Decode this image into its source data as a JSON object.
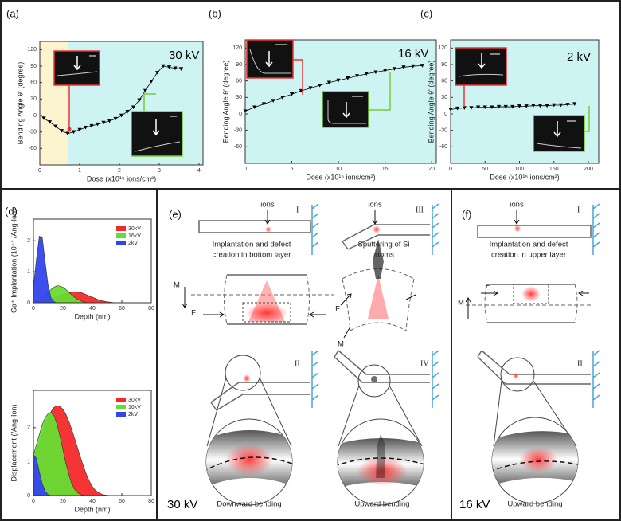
{
  "chart_data": [
    {
      "type": "line",
      "panel_label": "(a)",
      "annotation": "30 kV",
      "xlabel": "Dose (x10¹⁵ ions/cm²)",
      "ylabel": "Bending Angle θ' (degree)",
      "xlim": [
        0,
        4.1
      ],
      "ylim": [
        -90,
        135
      ],
      "xticks": [
        0,
        1,
        2,
        3,
        4
      ],
      "yticks": [
        -60,
        -30,
        0,
        30,
        60,
        90,
        120
      ],
      "background": "#cdf4f2",
      "highlight_span": [
        0,
        0.7
      ],
      "highlight_color": "#fbf4cf",
      "marker": "triangle-down",
      "x": [
        0.1,
        0.25,
        0.4,
        0.55,
        0.7,
        0.85,
        1.0,
        1.15,
        1.3,
        1.45,
        1.6,
        1.75,
        1.9,
        2.05,
        2.2,
        2.35,
        2.5,
        2.65,
        2.8,
        2.95,
        3.1,
        3.25,
        3.4,
        3.55
      ],
      "series": [
        {
          "color": "#000000",
          "values": [
            -5,
            -12,
            -20,
            -28,
            -33,
            -30,
            -26,
            -22,
            -19,
            -16,
            -13,
            -10,
            -6,
            0,
            7,
            15,
            28,
            45,
            62,
            78,
            90,
            88,
            86,
            85
          ]
        }
      ]
    },
    {
      "type": "line",
      "panel_label": "(b)",
      "annotation": "16 kV",
      "xlabel": "Dose (x10¹⁵ ions/cm²)",
      "ylabel": "Bending Angle θ' (degree)",
      "xlim": [
        0,
        20.5
      ],
      "ylim": [
        -90,
        135
      ],
      "xticks": [
        0,
        5,
        10,
        15,
        20
      ],
      "yticks": [
        -60,
        -30,
        0,
        30,
        60,
        90,
        120
      ],
      "background": "#cdf4f2",
      "marker": "triangle-down",
      "x": [
        0,
        1,
        2,
        3,
        4,
        5,
        6,
        7,
        8,
        9,
        10,
        11,
        12,
        13,
        14,
        15,
        16,
        17,
        18,
        19
      ],
      "series": [
        {
          "color": "#000000",
          "values": [
            5,
            12,
            18,
            24,
            30,
            36,
            42,
            47,
            52,
            57,
            61,
            65,
            69,
            73,
            76,
            79,
            82,
            85,
            87,
            88
          ]
        }
      ]
    },
    {
      "type": "line",
      "panel_label": "(c)",
      "annotation": "2 kV",
      "xlabel": "Dose (x10¹⁵ ions/cm²)",
      "ylabel": "Bending Angle θ' (degree)",
      "xlim": [
        0,
        215
      ],
      "ylim": [
        -90,
        135
      ],
      "xticks": [
        0,
        50,
        100,
        150,
        200
      ],
      "yticks": [
        -60,
        -30,
        0,
        30,
        60,
        90,
        120
      ],
      "background": "#cdf4f2",
      "marker": "triangle-down",
      "x": [
        0,
        10,
        20,
        30,
        40,
        50,
        60,
        70,
        80,
        90,
        100,
        110,
        120,
        130,
        140,
        150,
        160,
        170,
        180
      ],
      "series": [
        {
          "color": "#000000",
          "values": [
            8,
            10,
            11,
            11,
            12,
            12,
            12,
            13,
            13,
            13,
            14,
            14,
            15,
            15,
            15,
            16,
            16,
            17,
            18
          ]
        }
      ]
    },
    {
      "type": "area",
      "panel_label": "(d)",
      "xlabel": "Depth (nm)",
      "ylabel": "Ga⁺ Implantation (10⁻² /Ang-Ion)",
      "xlim": [
        0,
        80
      ],
      "ylim": [
        0,
        2.7
      ],
      "xticks": [
        0,
        20,
        40,
        60,
        80
      ],
      "yticks": [
        0,
        1,
        2
      ],
      "x": [
        0,
        2,
        4,
        6,
        8,
        10,
        12,
        14,
        16,
        18,
        20,
        22,
        24,
        26,
        28,
        30,
        32,
        34,
        36,
        38,
        40,
        42,
        44,
        46,
        48,
        50,
        52,
        54,
        56,
        58,
        60
      ],
      "series": [
        {
          "name": "30kV",
          "color": "#f42a2a",
          "values": [
            0.01,
            0.02,
            0.03,
            0.05,
            0.07,
            0.1,
            0.13,
            0.17,
            0.2,
            0.24,
            0.27,
            0.3,
            0.33,
            0.34,
            0.35,
            0.34,
            0.33,
            0.3,
            0.26,
            0.22,
            0.18,
            0.14,
            0.1,
            0.07,
            0.05,
            0.03,
            0.02,
            0.01,
            0,
            0,
            0
          ]
        },
        {
          "name": "16kV",
          "color": "#66dd33",
          "values": [
            0.02,
            0.05,
            0.1,
            0.17,
            0.25,
            0.34,
            0.43,
            0.5,
            0.55,
            0.54,
            0.5,
            0.43,
            0.34,
            0.25,
            0.17,
            0.11,
            0.06,
            0.03,
            0.01,
            0,
            0,
            0,
            0,
            0,
            0,
            0,
            0,
            0,
            0,
            0,
            0
          ]
        },
        {
          "name": "2kV",
          "color": "#3344ee",
          "values": [
            0.5,
            1.4,
            2.15,
            2.1,
            1.3,
            0.55,
            0.15,
            0.03,
            0,
            0,
            0,
            0,
            0,
            0,
            0,
            0,
            0,
            0,
            0,
            0,
            0,
            0,
            0,
            0,
            0,
            0,
            0,
            0,
            0,
            0,
            0
          ]
        }
      ]
    },
    {
      "type": "area",
      "xlabel": "Depth (nm)",
      "ylabel": "Displacement (/Ang-Ion)",
      "xlim": [
        0,
        80
      ],
      "ylim": [
        0,
        3.1
      ],
      "xticks": [
        0,
        20,
        40,
        60,
        80
      ],
      "yticks": [
        0,
        1,
        2
      ],
      "x": [
        0,
        2,
        4,
        6,
        8,
        10,
        12,
        14,
        16,
        18,
        20,
        22,
        24,
        26,
        28,
        30,
        32,
        34,
        36,
        38,
        40,
        42,
        44,
        46,
        48,
        50,
        52,
        54,
        56,
        58,
        60
      ],
      "series": [
        {
          "name": "30kV",
          "color": "#f42a2a",
          "values": [
            1.1,
            1.3,
            1.55,
            1.8,
            2.05,
            2.3,
            2.48,
            2.6,
            2.65,
            2.63,
            2.55,
            2.4,
            2.2,
            1.95,
            1.68,
            1.4,
            1.12,
            0.86,
            0.62,
            0.42,
            0.27,
            0.16,
            0.09,
            0.05,
            0.02,
            0.01,
            0,
            0,
            0,
            0,
            0
          ]
        },
        {
          "name": "16kV",
          "color": "#66dd33",
          "values": [
            1.2,
            1.5,
            1.8,
            2.1,
            2.3,
            2.42,
            2.45,
            2.35,
            2.1,
            1.75,
            1.35,
            0.95,
            0.62,
            0.35,
            0.18,
            0.08,
            0.03,
            0.01,
            0,
            0,
            0,
            0,
            0,
            0,
            0,
            0,
            0,
            0,
            0,
            0,
            0
          ]
        },
        {
          "name": "2kV",
          "color": "#3344ee",
          "values": [
            1.2,
            1.1,
            0.7,
            0.35,
            0.12,
            0.03,
            0,
            0,
            0,
            0,
            0,
            0,
            0,
            0,
            0,
            0,
            0,
            0,
            0,
            0,
            0,
            0,
            0,
            0,
            0,
            0,
            0,
            0,
            0,
            0,
            0
          ]
        }
      ]
    }
  ],
  "diagrams": {
    "e": {
      "label": "(e)",
      "ions": [
        "ions",
        "ions"
      ],
      "stages": [
        "I",
        "III",
        "II",
        "IV"
      ],
      "caption_left": [
        "Implantation and defect",
        "creation in bottom layer"
      ],
      "caption_right": [
        "Sputtering of Si",
        "atoms"
      ],
      "forces": [
        "M",
        "F",
        "F",
        "M"
      ],
      "energy": "30 kV",
      "result_left": "Downward bending",
      "result_right": "Upward bending"
    },
    "f": {
      "label": "(f)",
      "ions": "ions",
      "stages": [
        "I",
        "II"
      ],
      "caption": [
        "Implantation and defect",
        "creation in upper layer"
      ],
      "forces": [
        "M",
        "F"
      ],
      "energy": "16 kV",
      "result": "Upward bending"
    }
  }
}
